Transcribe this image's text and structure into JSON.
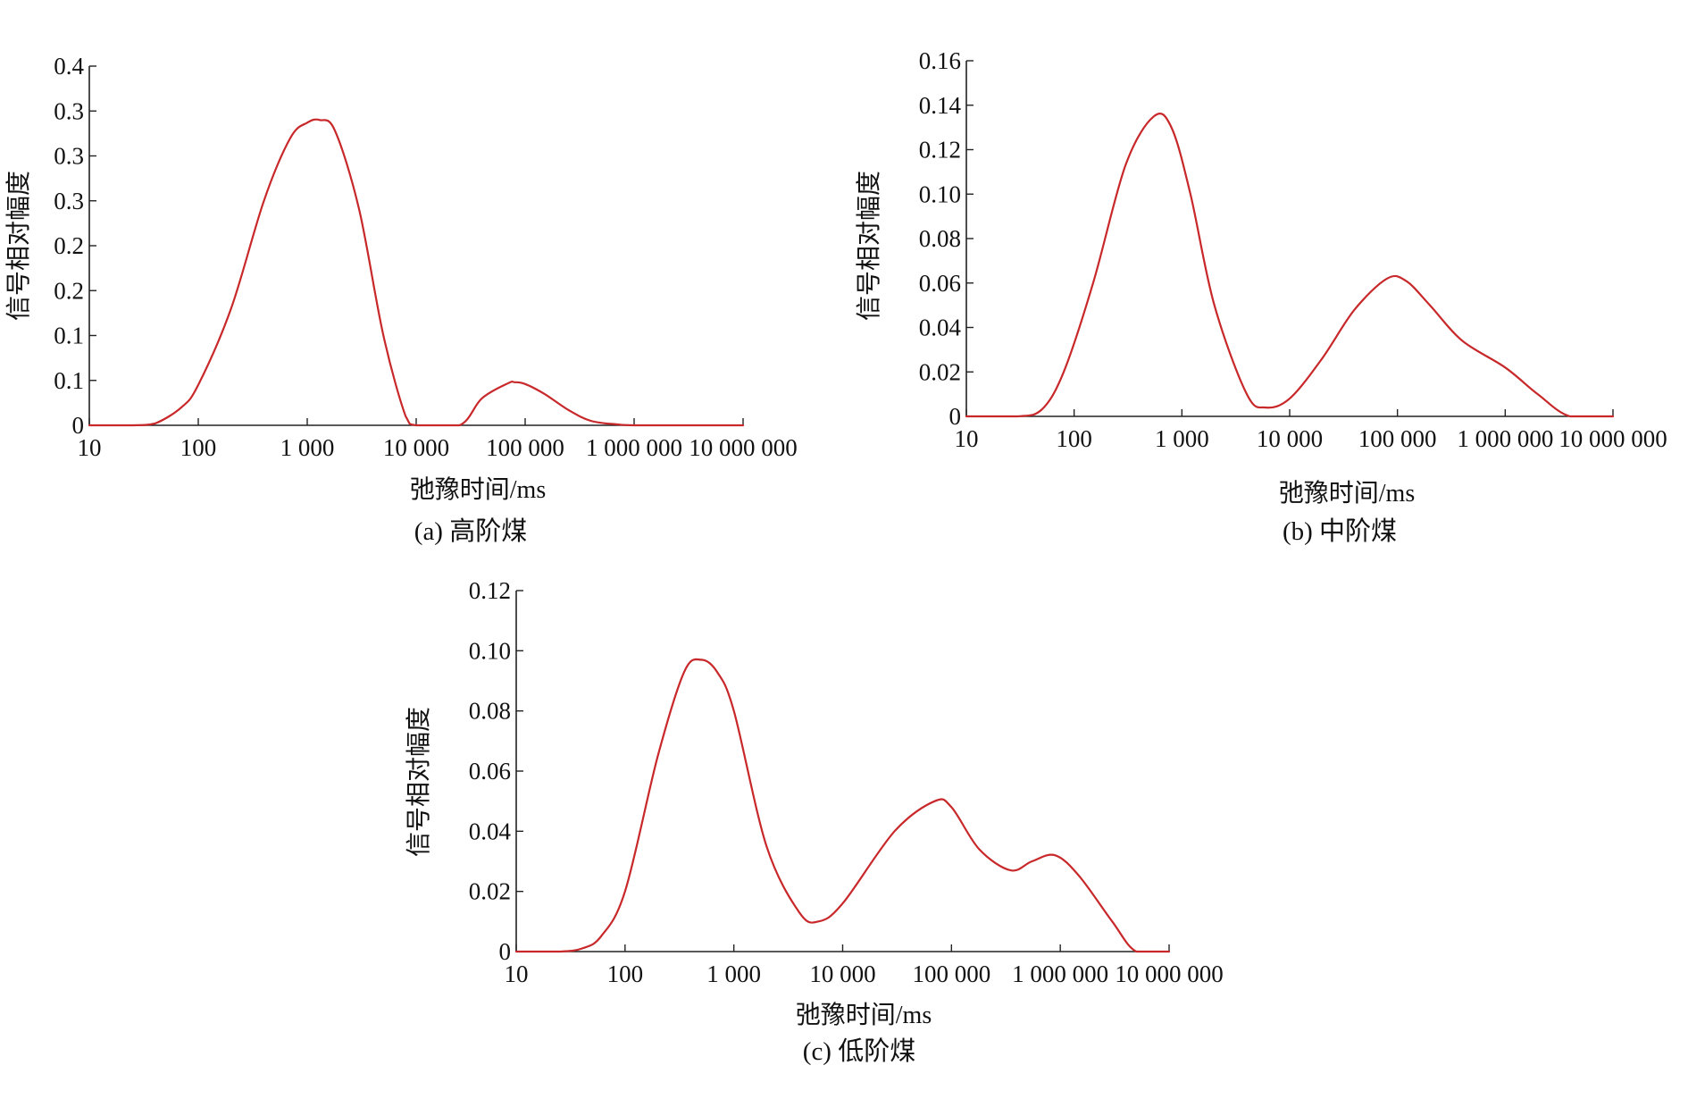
{
  "colors": {
    "axis": "#222222",
    "series": "#c8282a"
  },
  "chart_data": [
    {
      "type": "line",
      "caption": "(a) 高阶煤",
      "xlabel": "弛豫时间/ms",
      "ylabel": "信号相对幅度",
      "x_scale": "log",
      "xlim": [
        10,
        10000000
      ],
      "ylim": [
        0,
        0.4
      ],
      "x_ticks": [
        10,
        100,
        1000,
        10000,
        100000,
        1000000,
        10000000
      ],
      "x_tick_labels": [
        "10",
        "100",
        "1 000",
        "10 000",
        "100 000",
        "1 000 000",
        "10 000 000"
      ],
      "y_ticks": [
        0,
        0.05,
        0.1,
        0.15,
        0.2,
        0.25,
        0.3,
        0.35,
        0.4
      ],
      "y_tick_labels": [
        "0",
        "0.1",
        "0.1",
        "0.2",
        "0.2",
        "0.3",
        "0.3",
        "0.3",
        "0.4"
      ],
      "series": [
        {
          "x": [
            10,
            25,
            40,
            70,
            100,
            200,
            400,
            700,
            1000,
            1300,
            1800,
            3000,
            5000,
            8000,
            10000,
            25000,
            40000,
            70000,
            80000,
            100000,
            150000,
            250000,
            400000,
            700000,
            1000000,
            3000000,
            10000000
          ],
          "y": [
            0,
            0,
            0.002,
            0.02,
            0.045,
            0.13,
            0.25,
            0.32,
            0.337,
            0.34,
            0.328,
            0.24,
            0.1,
            0.01,
            0,
            0,
            0.03,
            0.047,
            0.048,
            0.046,
            0.035,
            0.017,
            0.005,
            0.001,
            0,
            0,
            0
          ]
        }
      ]
    },
    {
      "type": "line",
      "caption": "(b) 中阶煤",
      "xlabel": "弛豫时间/ms",
      "ylabel": "信号相对幅度",
      "x_scale": "log",
      "xlim": [
        10,
        10000000
      ],
      "ylim": [
        0,
        0.16
      ],
      "x_ticks": [
        10,
        100,
        1000,
        10000,
        100000,
        1000000,
        10000000
      ],
      "x_tick_labels": [
        "10",
        "100",
        "1 000",
        "10 000",
        "100 000",
        "1 000 000",
        "10 000 000"
      ],
      "y_ticks": [
        0,
        0.02,
        0.04,
        0.06,
        0.08,
        0.1,
        0.12,
        0.14,
        0.16
      ],
      "y_tick_labels": [
        "0",
        "0.02",
        "0.04",
        "0.06",
        "0.08",
        "0.10",
        "0.12",
        "0.14",
        "0.16"
      ],
      "series": [
        {
          "x": [
            10,
            30,
            50,
            80,
            150,
            300,
            550,
            800,
            1200,
            2000,
            4000,
            6000,
            10000,
            20000,
            40000,
            80000,
            120000,
            200000,
            400000,
            1000000,
            2000000,
            4000000,
            10000000
          ],
          "y": [
            0,
            0,
            0.003,
            0.02,
            0.06,
            0.113,
            0.135,
            0.13,
            0.1,
            0.05,
            0.01,
            0.004,
            0.008,
            0.026,
            0.048,
            0.062,
            0.061,
            0.05,
            0.034,
            0.022,
            0.01,
            0,
            0
          ]
        }
      ]
    },
    {
      "type": "line",
      "caption": "(c) 低阶煤",
      "xlabel": "弛豫时间/ms",
      "ylabel": "信号相对幅度",
      "x_scale": "log",
      "xlim": [
        10,
        10000000
      ],
      "ylim": [
        0,
        0.12
      ],
      "x_ticks": [
        10,
        100,
        1000,
        10000,
        100000,
        1000000,
        10000000
      ],
      "x_tick_labels": [
        "10",
        "100",
        "1 000",
        "10 000",
        "100 000",
        "1 000 000",
        "10 000 000"
      ],
      "y_ticks": [
        0,
        0.02,
        0.04,
        0.06,
        0.08,
        0.1,
        0.12
      ],
      "y_tick_labels": [
        "0",
        "0.02",
        "0.04",
        "0.06",
        "0.08",
        "0.10",
        "0.12"
      ],
      "series": [
        {
          "x": [
            10,
            25,
            40,
            60,
            100,
            200,
            350,
            500,
            700,
            1000,
            2000,
            4000,
            6000,
            10000,
            30000,
            70000,
            100000,
            180000,
            350000,
            550000,
            900000,
            1500000,
            3000000,
            5000000,
            10000000
          ],
          "y": [
            0,
            0,
            0.001,
            0.005,
            0.02,
            0.065,
            0.093,
            0.097,
            0.093,
            0.08,
            0.035,
            0.013,
            0.01,
            0.016,
            0.04,
            0.05,
            0.048,
            0.034,
            0.027,
            0.03,
            0.032,
            0.025,
            0.01,
            0,
            0
          ]
        }
      ]
    }
  ]
}
